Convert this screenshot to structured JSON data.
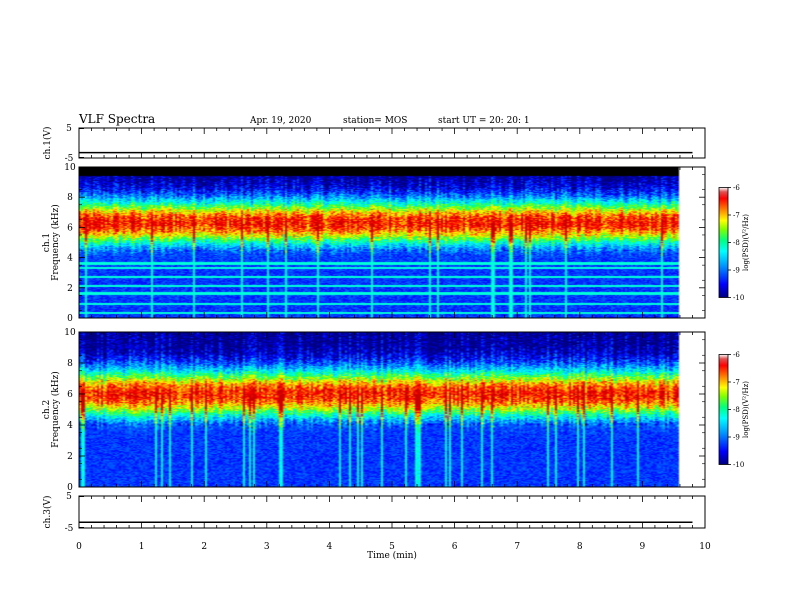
{
  "header": {
    "title": "VLF Spectra",
    "date": "Apr. 19, 2020",
    "station": "station= MOS",
    "start": "start  UT =   20: 20: 1"
  },
  "chart_data": {
    "type": "heatmap",
    "x_axis": {
      "label": "Time  (min)",
      "range": [
        0,
        10
      ],
      "ticks": [
        "0",
        "1",
        "2",
        "3",
        "4",
        "5",
        "6",
        "7",
        "8",
        "9",
        "10"
      ]
    },
    "data_end_min": 9.8,
    "panels": [
      {
        "name": "ch.1(V)",
        "kind": "waveform",
        "ylabel": "ch.1(V)",
        "yticks": [
          "5",
          "-5"
        ],
        "ylim": [
          -5,
          5
        ],
        "trace_level": -3.2
      },
      {
        "name": "ch.1 spectrogram",
        "kind": "spectrogram",
        "ylabel1": "ch.1",
        "ylabel2": "Frequency (kHz)",
        "ylim": [
          0,
          10
        ],
        "yticks": [
          "0",
          "2",
          "4",
          "6",
          "8",
          "10"
        ],
        "band_center_khz": 6.3,
        "band_halfwidth_khz": 1.9,
        "cutoff_khz": 9.4,
        "colorbar": {
          "label": "log(PSD)(V²/Hz)",
          "ticks": [
            "-6",
            "-7",
            "-8",
            "-9",
            "-10"
          ],
          "range": [
            -10,
            -6
          ]
        }
      },
      {
        "name": "ch.2 spectrogram",
        "kind": "spectrogram",
        "ylabel1": "ch.2",
        "ylabel2": "Frequency (kHz)",
        "ylim": [
          0,
          10
        ],
        "yticks": [
          "0",
          "2",
          "4",
          "6",
          "8",
          "10"
        ],
        "band_center_khz": 6.0,
        "band_halfwidth_khz": 2.0,
        "cutoff_khz": 10.0,
        "colorbar": {
          "label": "log(PSD)(V²/Hz)",
          "ticks": [
            "-6",
            "-7",
            "-8",
            "-9",
            "-10"
          ],
          "range": [
            -10,
            -6
          ]
        }
      },
      {
        "name": "ch.3(V)",
        "kind": "waveform",
        "ylabel": "ch.3(V)",
        "yticks": [
          "5",
          "-5"
        ],
        "ylim": [
          -5,
          5
        ],
        "trace_level": -3.2
      }
    ],
    "colormap": [
      "#000080",
      "#0000ff",
      "#00a0ff",
      "#00ffff",
      "#00ff80",
      "#ffff00",
      "#ff8000",
      "#ff0000",
      "#c00000",
      "#ffffff"
    ]
  }
}
